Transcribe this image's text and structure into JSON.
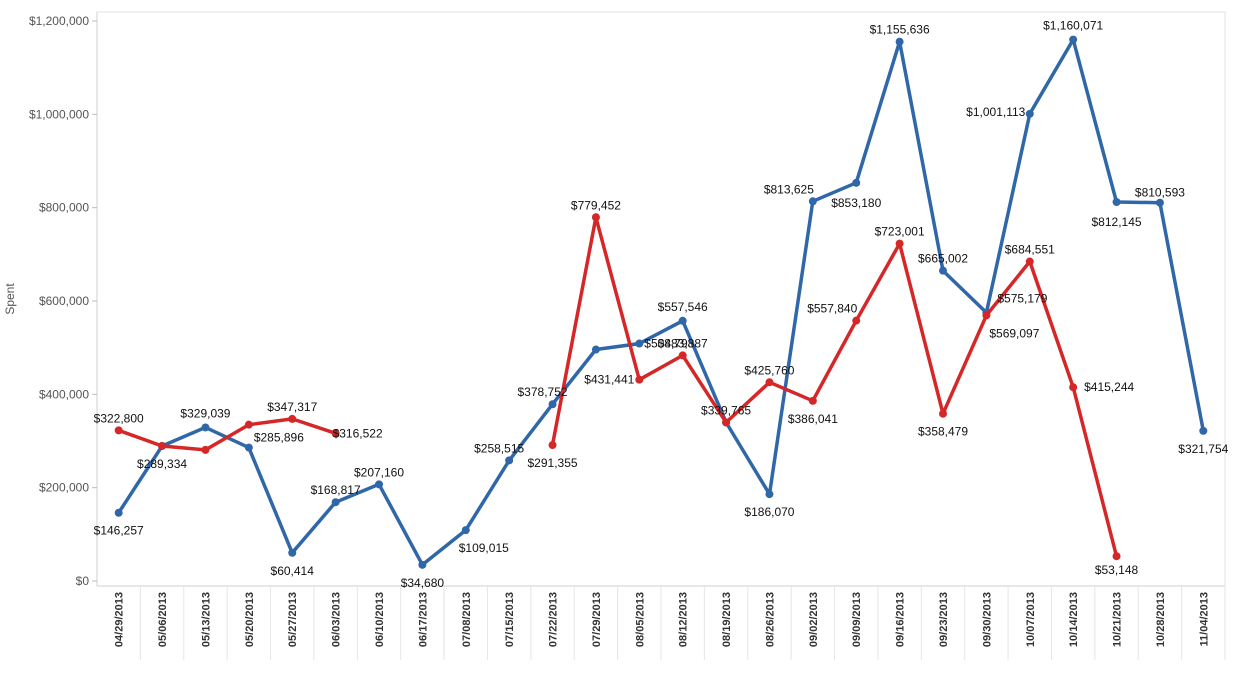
{
  "chart_data": {
    "type": "line",
    "title": "",
    "xlabel": "",
    "ylabel": "Spent",
    "ylim": [
      0,
      1200000
    ],
    "yticks": [
      0,
      200000,
      400000,
      600000,
      800000,
      1000000,
      1200000
    ],
    "ytick_labels": [
      "$0",
      "$200,000",
      "$400,000",
      "$600,000",
      "$800,000",
      "$1,000,000",
      "$1,200,000"
    ],
    "categories": [
      "04/29/2013",
      "05/06/2013",
      "05/13/2013",
      "05/20/2013",
      "05/27/2013",
      "06/03/2013",
      "06/10/2013",
      "06/17/2013",
      "07/08/2013",
      "07/15/2013",
      "07/22/2013",
      "07/29/2013",
      "08/05/2013",
      "08/12/2013",
      "08/19/2013",
      "08/26/2013",
      "09/02/2013",
      "09/09/2013",
      "09/16/2013",
      "09/23/2013",
      "09/30/2013",
      "10/07/2013",
      "10/14/2013",
      "10/21/2013",
      "10/28/2013",
      "11/04/2013"
    ],
    "grid": false,
    "legend": "none",
    "series": [
      {
        "color": "#2f67a8",
        "values": [
          146257,
          289334,
          329039,
          285896,
          60414,
          168817,
          207160,
          34680,
          109015,
          258515,
          378752,
          496000,
          508798,
          557546,
          339765,
          186070,
          813625,
          853180,
          1155636,
          665002,
          575179,
          1001113,
          1160071,
          812145,
          810593,
          321754
        ],
        "labels": [
          "$146,257",
          "",
          "$329,039",
          "$285,896",
          "$60,414",
          "$168,817",
          "$207,160",
          "$34,680",
          "$109,015",
          "$258,515",
          "$378,752",
          "",
          "$508,798",
          "$557,546",
          "",
          "$186,070",
          "$813,625",
          "$853,180",
          "$1,155,636",
          "$665,002",
          "$575,179",
          "$1,001,113",
          "$1,160,071",
          "$812,145",
          "$810,593",
          "$321,754"
        ]
      },
      {
        "color": "#d62728",
        "values": [
          322800,
          289334,
          281000,
          335000,
          347317,
          316522,
          null,
          null,
          null,
          null,
          291355,
          779452,
          431441,
          483387,
          339765,
          425760,
          386041,
          557840,
          723001,
          358479,
          569097,
          684551,
          415244,
          53148,
          null,
          null
        ],
        "labels": [
          "$322,800",
          "$289,334",
          "",
          "",
          "$347,317",
          "$316,522",
          "",
          "",
          "",
          "",
          "$291,355",
          "$779,452",
          "$431,441",
          "$483,387",
          "$339,765",
          "$425,760",
          "$386,041",
          "$557,840",
          "$723,001",
          "$358,479",
          "$569,097",
          "$684,551",
          "$415,244",
          "$53,148",
          "",
          ""
        ]
      }
    ]
  }
}
